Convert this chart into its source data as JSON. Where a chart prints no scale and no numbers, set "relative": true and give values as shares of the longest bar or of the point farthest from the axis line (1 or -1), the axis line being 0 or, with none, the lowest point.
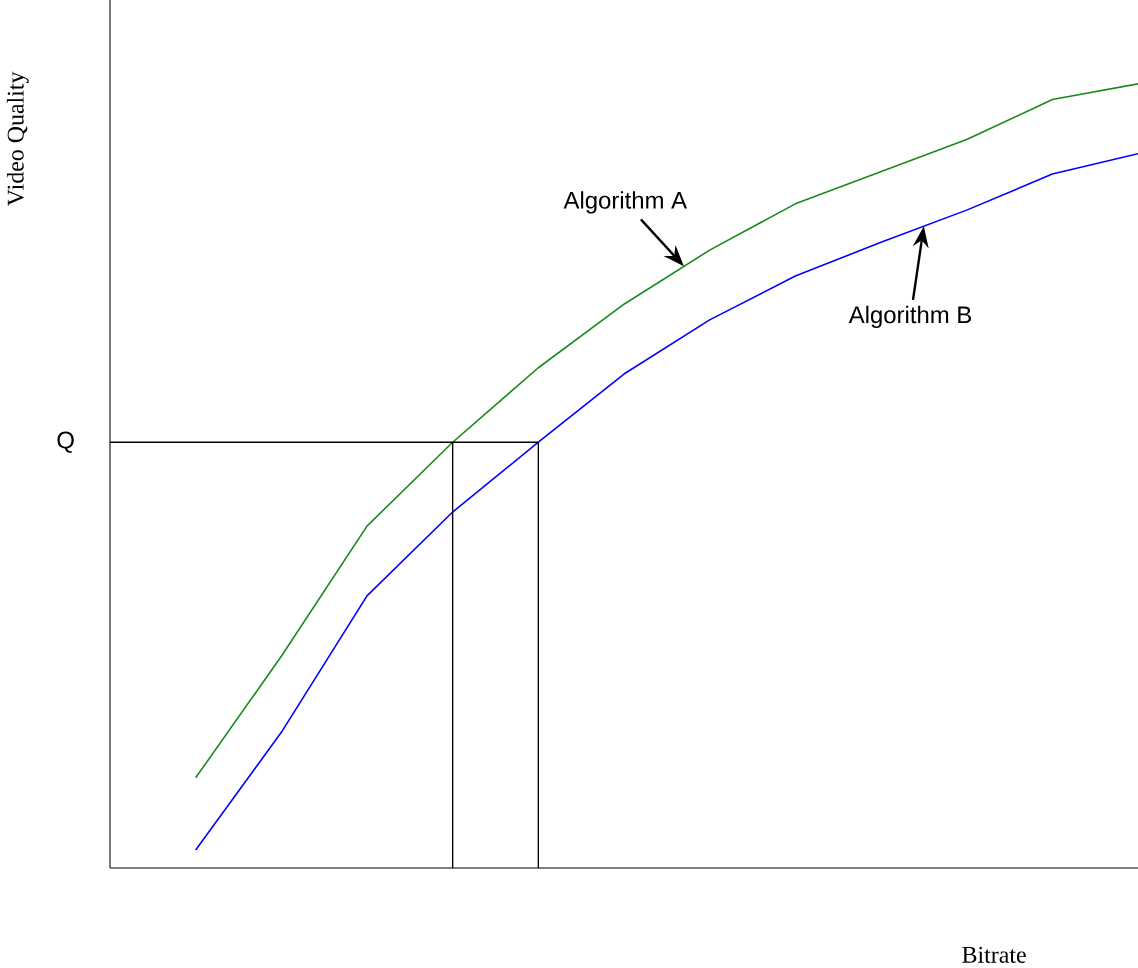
{
  "chart_data": {
    "type": "line",
    "relative": true,
    "xlabel": "Bitrate",
    "ylabel": "Video Quality",
    "categories": [
      null,
      null,
      null,
      null,
      null,
      null,
      null,
      null,
      null,
      null,
      null,
      null
    ],
    "series": [
      {
        "name": "Algorithm A",
        "color": "#1a8a1a",
        "values": [
          0.115,
          0.27,
          0.436,
          0.543,
          0.638,
          0.719,
          0.788,
          0.847,
          0.888,
          0.929,
          0.98,
          1
        ]
      },
      {
        "name": "Algorithm B",
        "color": "#0000ff",
        "values": [
          0.023,
          0.173,
          0.347,
          0.454,
          0.543,
          0.63,
          0.699,
          0.755,
          0.798,
          0.839,
          0.885,
          0.911
        ]
      }
    ],
    "ref_lines": [
      {
        "axis": "y",
        "value": 0.543,
        "label": "Q",
        "color": "#000000"
      }
    ]
  }
}
